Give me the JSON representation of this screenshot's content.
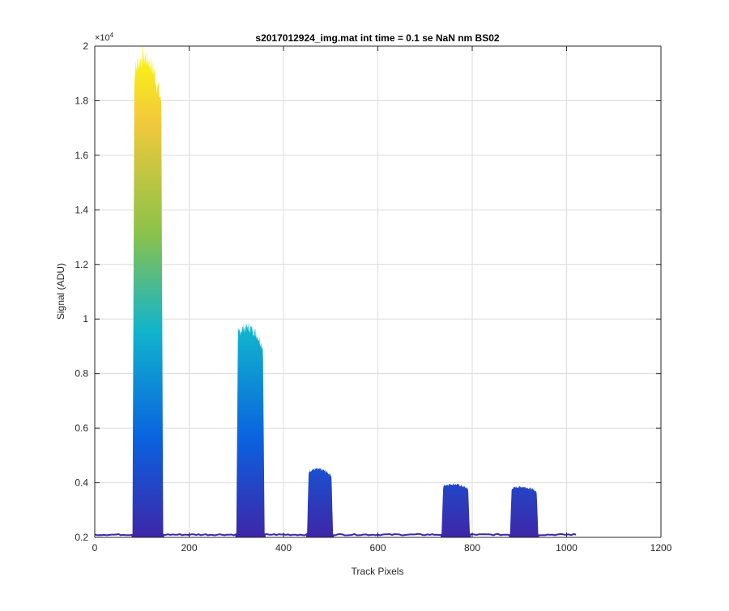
{
  "chart_data": {
    "type": "area",
    "title": "s2017012924_img.mat int time = 0.1 se  NaN nm BS02",
    "xlabel": "Track Pixels",
    "ylabel": "Signal (ADU)",
    "y_exponent_label": "×10",
    "y_exponent_power": "4",
    "xlim": [
      0,
      1200
    ],
    "ylim": [
      2000,
      20000
    ],
    "xticks": [
      0,
      200,
      400,
      600,
      800,
      1000,
      1200
    ],
    "xtick_labels": [
      "0",
      "200",
      "400",
      "600",
      "800",
      "1000",
      "1200"
    ],
    "yticks": [
      2000,
      4000,
      6000,
      8000,
      10000,
      12000,
      14000,
      16000,
      18000,
      20000
    ],
    "ytick_labels": [
      "0.2",
      "0.4",
      "0.6",
      "0.8",
      "1",
      "1.2",
      "1.4",
      "1.6",
      "1.8",
      "2"
    ],
    "grid": true,
    "colormap": [
      "#3e26a8",
      "#0a62e0",
      "#10b4cc",
      "#8cc24a",
      "#f3c93a",
      "#f9fb0e"
    ],
    "baseline": 2100,
    "x_end": 1020,
    "peaks": [
      {
        "x_start": 80,
        "x_end": 145,
        "peak": 19600
      },
      {
        "x_start": 300,
        "x_end": 360,
        "peak": 9700
      },
      {
        "x_start": 450,
        "x_end": 505,
        "peak": 4500
      },
      {
        "x_start": 735,
        "x_end": 795,
        "peak": 3950
      },
      {
        "x_start": 880,
        "x_end": 940,
        "peak": 3850
      }
    ]
  }
}
